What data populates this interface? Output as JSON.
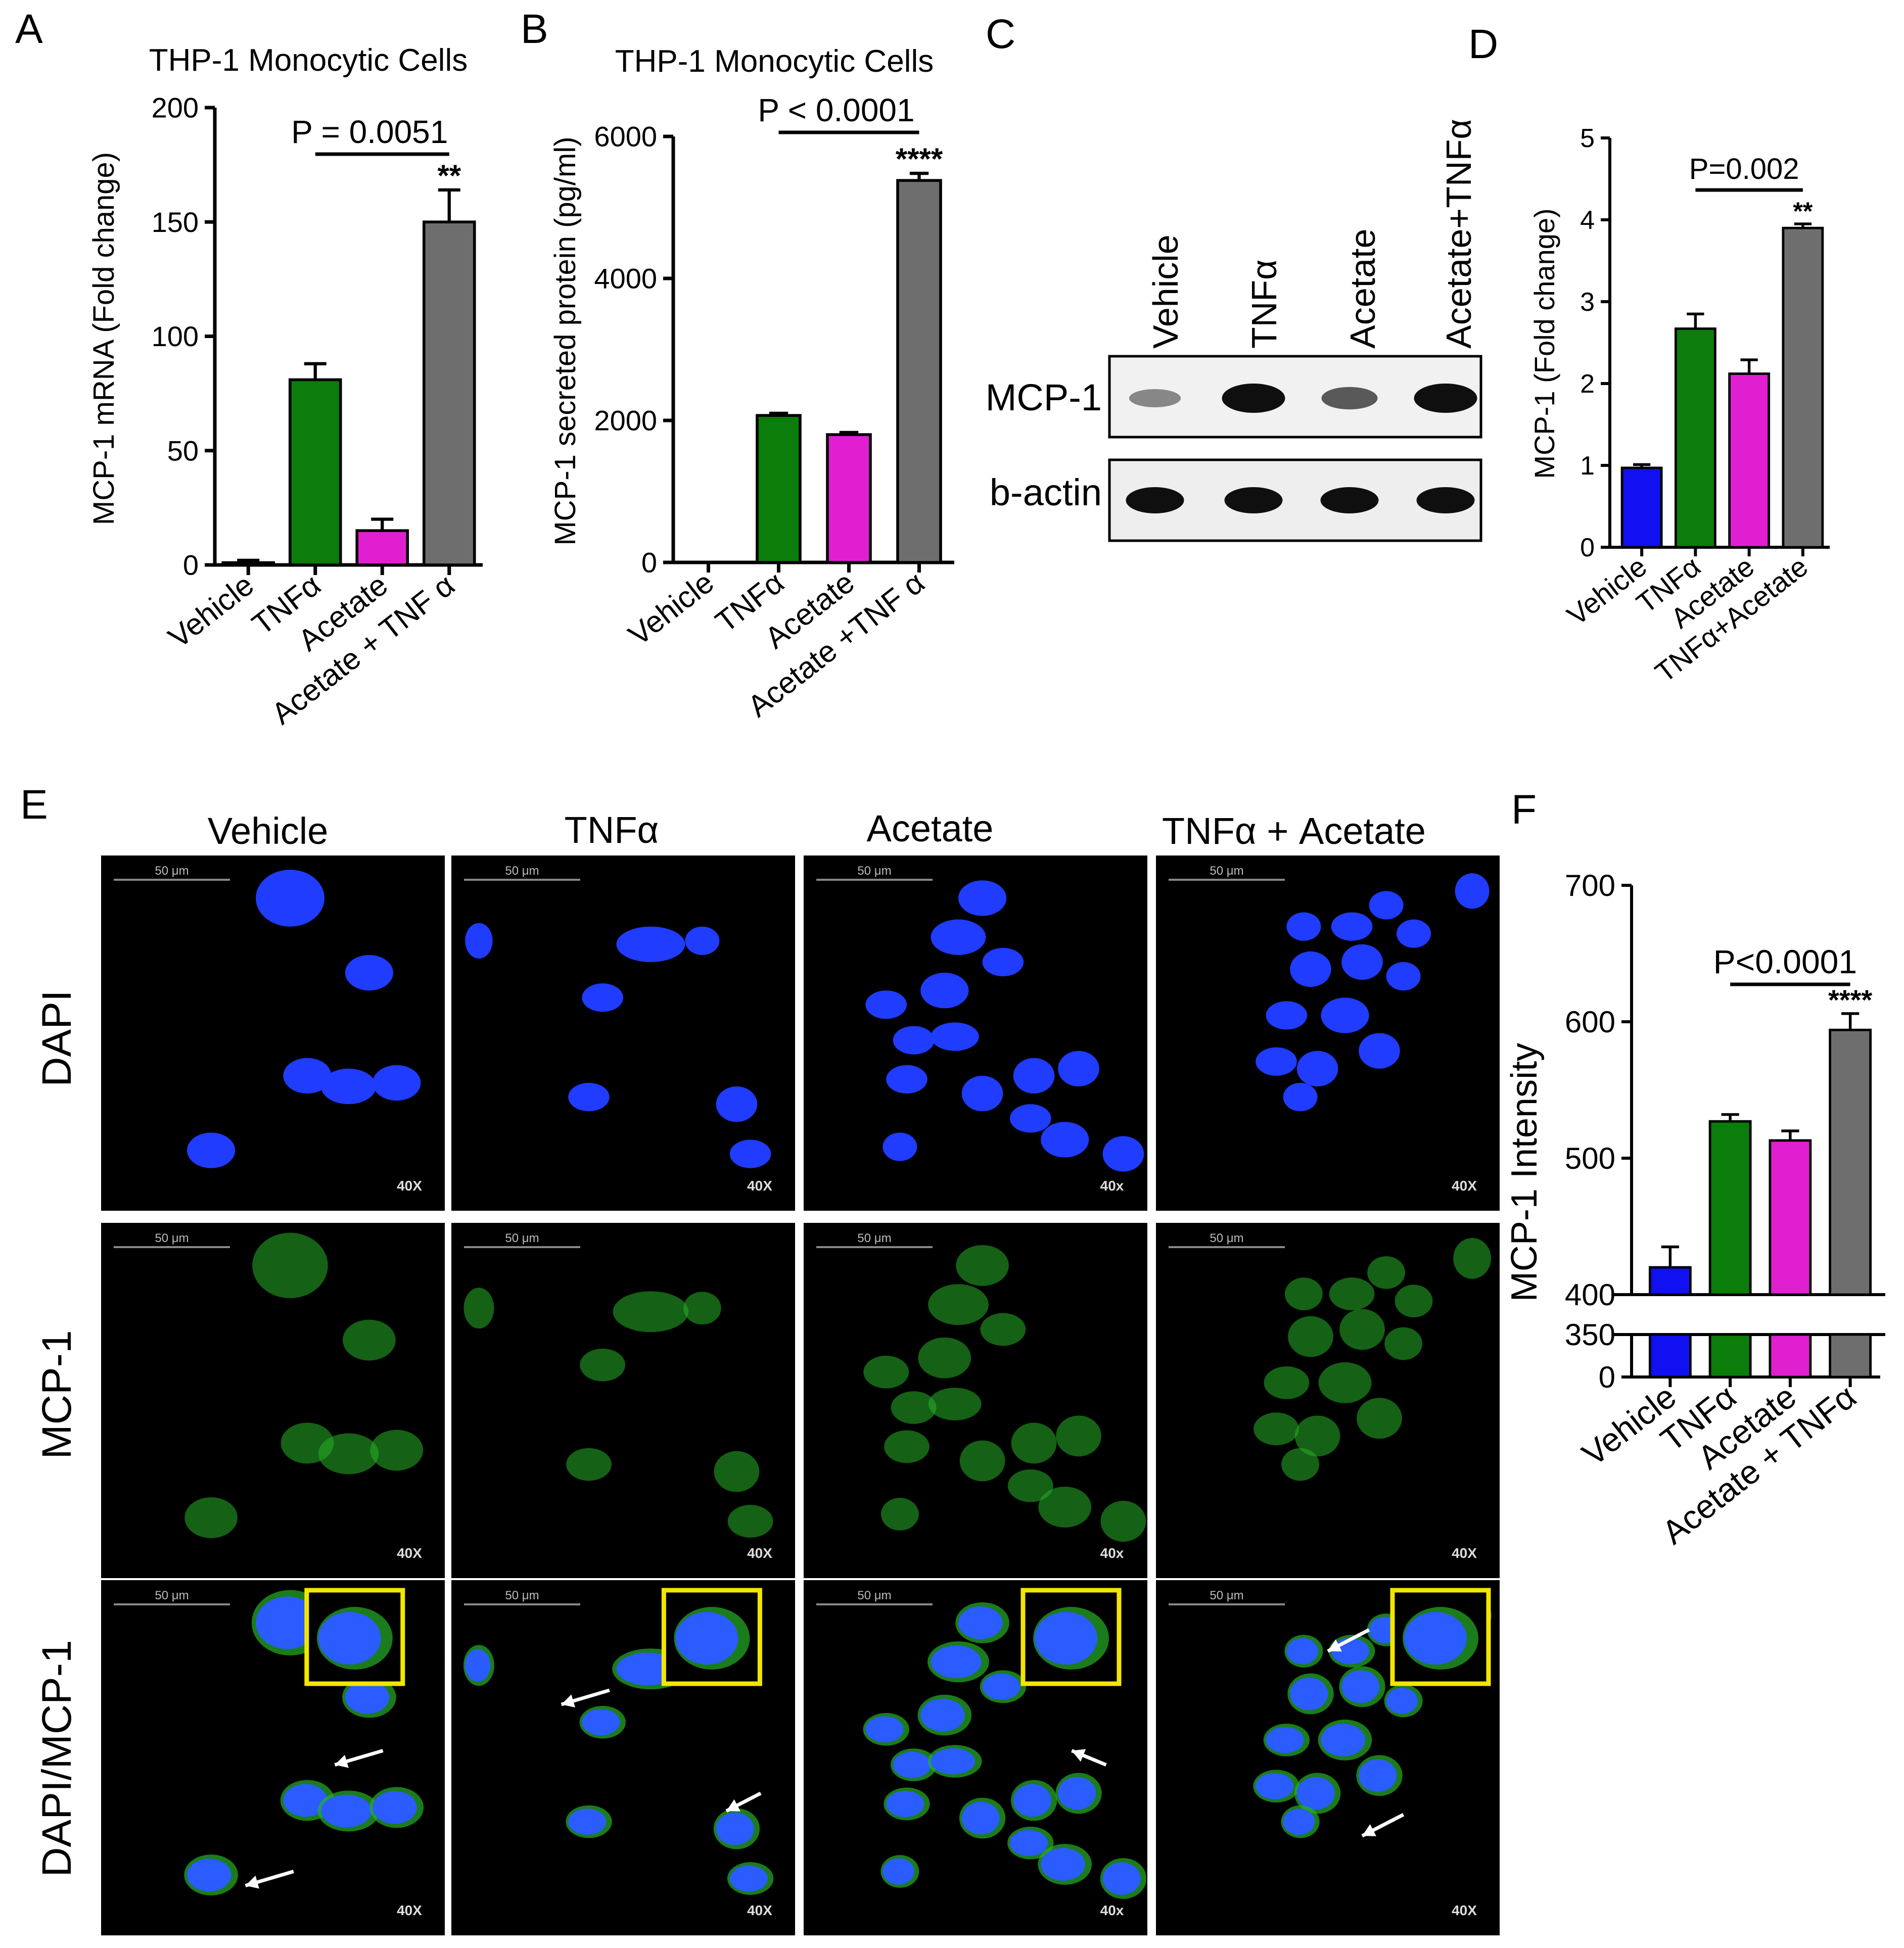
{
  "colors": {
    "vehicle": "#1010f0",
    "tnf": "#0a7d0a",
    "acetate": "#e020d0",
    "combo": "#6e6e6e",
    "dapi": "#1f3cff",
    "mcp1_stain": "#26b026",
    "inset_border": "#f2e600",
    "micro_bg": "#000000"
  },
  "panels": {
    "A": "A",
    "B": "B",
    "C": "C",
    "D": "D",
    "E": "E",
    "F": "F"
  },
  "chart_data": [
    {
      "id": "A",
      "type": "bar",
      "title": "THP-1 Monocytic Cells",
      "ylabel": "MCP-1 mRNA (Fold change)",
      "categories": [
        "Vehicle",
        "TNFα",
        "Acetate",
        "Acetate + TNF α"
      ],
      "values": [
        1,
        81,
        15,
        150
      ],
      "errors": [
        1,
        7,
        5,
        14
      ],
      "ylim": [
        0,
        200
      ],
      "yticks": [
        0,
        50,
        100,
        150,
        200
      ],
      "bracket": {
        "from": 1,
        "to": 3,
        "label": "P = 0.0051"
      },
      "stars": {
        "index": 3,
        "label": "**"
      }
    },
    {
      "id": "B",
      "type": "bar",
      "title": "THP-1 Monocytic Cells",
      "ylabel": "MCP-1  secreted  protein (pg/ml)",
      "categories": [
        "Vehicle",
        "TNFα",
        "Acetate",
        "Acetate +TNF α"
      ],
      "values": [
        0,
        2070,
        1800,
        5380
      ],
      "errors": [
        0,
        30,
        30,
        100
      ],
      "ylim": [
        0,
        6000
      ],
      "yticks": [
        0,
        2000,
        4000,
        6000
      ],
      "bracket": {
        "from": 1,
        "to": 3,
        "label": "P < 0.0001"
      },
      "stars": {
        "index": 3,
        "label": "****"
      }
    },
    {
      "id": "D",
      "type": "bar",
      "title": "",
      "ylabel": "MCP-1 (Fold change)",
      "categories": [
        "Vehicle",
        "TNFα",
        "Acetate",
        "TNFα+Acetate"
      ],
      "values": [
        0.97,
        2.67,
        2.12,
        3.9
      ],
      "errors": [
        0.04,
        0.18,
        0.17,
        0.05
      ],
      "ylim": [
        0,
        5
      ],
      "yticks": [
        0,
        1,
        2,
        3,
        4,
        5
      ],
      "bracket": {
        "from": 1,
        "to": 3,
        "label": "P=0.002"
      },
      "stars": {
        "index": 3,
        "label": "**"
      }
    },
    {
      "id": "F",
      "type": "bar",
      "title": "",
      "ylabel": "MCP-1 Intensity",
      "categories": [
        "Vehicle",
        "TNFα",
        "Acetate",
        "Acetate + TNFα"
      ],
      "values": [
        420,
        527,
        513,
        594
      ],
      "errors": [
        15,
        5,
        7,
        12
      ],
      "ylim": [
        0,
        700
      ],
      "axis_break": [
        350,
        400
      ],
      "yticks": [
        0,
        350,
        400,
        500,
        600,
        700
      ],
      "bracket": {
        "from": 1,
        "to": 3,
        "label": "P<0.0001"
      },
      "stars": {
        "index": 3,
        "label": "****"
      }
    }
  ],
  "blot": {
    "lanes": [
      "Vehicle",
      "TNFα",
      "Acetate",
      "Acetate+TNFα"
    ],
    "rows": [
      {
        "label": "MCP-1",
        "intensities": [
          0.35,
          1.0,
          0.6,
          1.0
        ]
      },
      {
        "label": "b-actin",
        "intensities": [
          1.0,
          1.0,
          1.0,
          1.0
        ]
      }
    ]
  },
  "microscopy": {
    "columns": [
      "Vehicle",
      "TNFα",
      "Acetate",
      "TNFα  +  Acetate"
    ],
    "rows": [
      "DAPI",
      "MCP-1",
      "DAPI/MCP-1"
    ],
    "scale_bar": "50 μm",
    "magnifications": [
      [
        "40X",
        "40X",
        "40x",
        "40X"
      ],
      [
        "40X",
        "40X",
        "40x",
        "40X"
      ],
      [
        "40X",
        "40X",
        "40x",
        "40X"
      ]
    ]
  }
}
